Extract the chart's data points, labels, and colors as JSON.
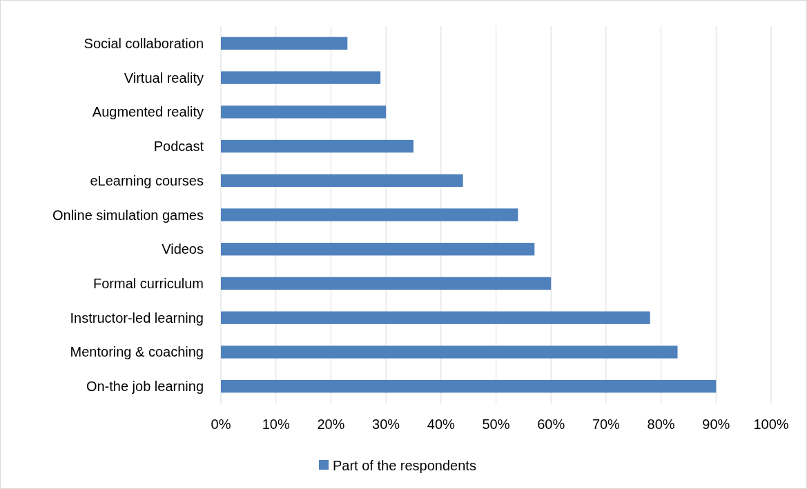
{
  "chart_data": {
    "type": "bar",
    "orientation": "horizontal",
    "categories": [
      "Social collaboration",
      "Virtual reality",
      "Augmented reality",
      "Podcast",
      "eLearning courses",
      "Online simulation games",
      "Videos",
      "Formal curriculum",
      "Instructor-led learning",
      "Mentoring & coaching",
      "On-the job learning"
    ],
    "series": [
      {
        "name": "Part of the respondents",
        "color": "#4f81bd",
        "values": [
          23,
          29,
          30,
          35,
          44,
          54,
          57,
          60,
          78,
          83,
          90
        ]
      }
    ],
    "xlim": [
      0,
      100
    ],
    "xticks": [
      {
        "value": 0,
        "label": "0%"
      },
      {
        "value": 10,
        "label": "10%"
      },
      {
        "value": 20,
        "label": "20%"
      },
      {
        "value": 30,
        "label": "30%"
      },
      {
        "value": 40,
        "label": "40%"
      },
      {
        "value": 50,
        "label": "50%"
      },
      {
        "value": 60,
        "label": "60%"
      },
      {
        "value": 70,
        "label": "70%"
      },
      {
        "value": 80,
        "label": "80%"
      },
      {
        "value": 90,
        "label": "90%"
      },
      {
        "value": 100,
        "label": "100%"
      }
    ],
    "grid": "x",
    "legend": "bottom"
  }
}
